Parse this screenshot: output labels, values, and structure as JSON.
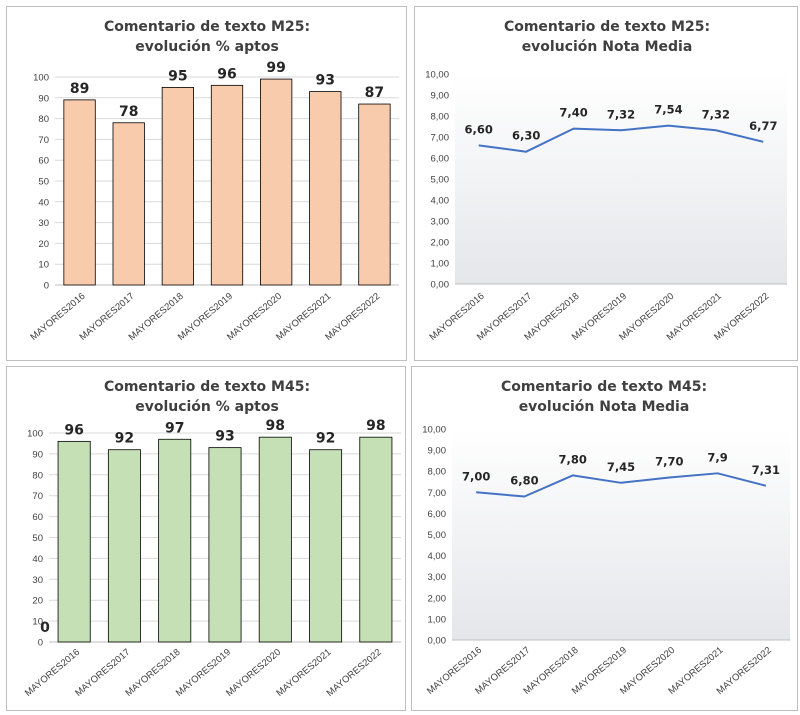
{
  "chart_data": [
    {
      "type": "bar",
      "title": [
        "Comentario de texto M25:",
        "evolución % aptos"
      ],
      "categories": [
        "MAYORES2016",
        "MAYORES2017",
        "MAYORES2018",
        "MAYORES2019",
        "MAYORES2020",
        "MAYORES2021",
        "MAYORES2022"
      ],
      "values": [
        89,
        78,
        95,
        96,
        99,
        93,
        87
      ],
      "ylim": [
        0,
        100
      ],
      "yticks": [
        "0",
        "10",
        "20",
        "30",
        "40",
        "50",
        "60",
        "70",
        "80",
        "90",
        "100"
      ],
      "grid": true,
      "color": "#f8cbad",
      "edge_color": "#000000"
    },
    {
      "type": "line",
      "title": [
        "Comentario de texto M25:",
        "evolución Nota Media"
      ],
      "categories": [
        "MAYORES2016",
        "MAYORES2017",
        "MAYORES2018",
        "MAYORES2019",
        "MAYORES2020",
        "MAYORES2021",
        "MAYORES2022"
      ],
      "values": [
        6.6,
        6.3,
        7.4,
        7.32,
        7.54,
        7.32,
        6.77
      ],
      "labels": [
        "6,60",
        "6,30",
        "7,40",
        "7,32",
        "7,54",
        "7,32",
        "6,77"
      ],
      "ylim": [
        0,
        10
      ],
      "yticks": [
        "0,00",
        "1,00",
        "2,00",
        "3,00",
        "4,00",
        "5,00",
        "6,00",
        "7,00",
        "8,00",
        "9,00",
        "10,00"
      ],
      "grid": false,
      "color": "#4472c4"
    },
    {
      "type": "bar",
      "title": [
        "Comentario de texto M45:",
        "evolución % aptos"
      ],
      "categories": [
        "MAYORES2016",
        "MAYORES2017",
        "MAYORES2018",
        "MAYORES2019",
        "MAYORES2020",
        "MAYORES2021",
        "MAYORES2022"
      ],
      "values": [
        96,
        92,
        97,
        93,
        98,
        92,
        98
      ],
      "ylim": [
        0,
        100
      ],
      "yticks": [
        "0",
        "10",
        "20",
        "30",
        "40",
        "50",
        "60",
        "70",
        "80",
        "90",
        "100"
      ],
      "grid": true,
      "color": "#c5e0b4",
      "edge_color": "#000000",
      "extra_label": "0"
    },
    {
      "type": "line",
      "title": [
        "Comentario de texto M45:",
        "evolución Nota Media"
      ],
      "categories": [
        "MAYORES2016",
        "MAYORES2017",
        "MAYORES2018",
        "MAYORES2019",
        "MAYORES2020",
        "MAYORES2021",
        "MAYORES2022"
      ],
      "values": [
        7.0,
        6.8,
        7.8,
        7.45,
        7.7,
        7.9,
        7.31
      ],
      "labels": [
        "7,00",
        "6,80",
        "7,80",
        "7,45",
        "7,70",
        "7,9",
        "7,31"
      ],
      "ylim": [
        0,
        10
      ],
      "yticks": [
        "0,00",
        "1,00",
        "2,00",
        "3,00",
        "4,00",
        "5,00",
        "6,00",
        "7,00",
        "8,00",
        "9,00",
        "10,00"
      ],
      "grid": false,
      "color": "#4472c4"
    }
  ]
}
